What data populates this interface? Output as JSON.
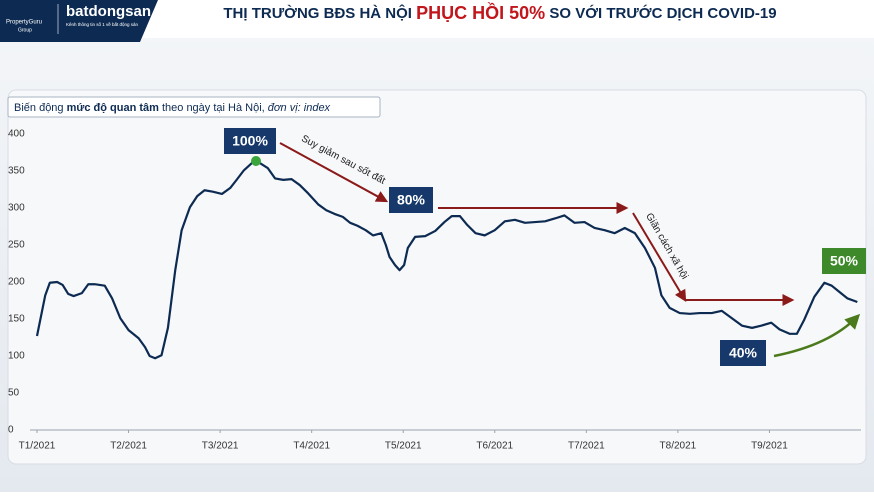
{
  "header": {
    "logos": [
      "PropertyGuru",
      "Group",
      "batdongsan",
      "Kênh thông tin số 1 về bất động sản"
    ],
    "title": [
      "THỊ TRƯỜNG BĐS HÀ NỘI ",
      "PHỤC HỒI 50%",
      " SO VỚI TRƯỚC DỊCH COVID-19"
    ]
  },
  "chart_data": {
    "type": "line",
    "subtitle": [
      "Biến động ",
      "mức độ quan tâm",
      " theo ngày tại Hà Nội, ",
      "đơn vị: index"
    ],
    "annotations": [
      "100%",
      "80%",
      "40%",
      "50%",
      "Suy giảm sau sốt đất",
      "Giãn cách xã hội"
    ],
    "color": "#0d2b52",
    "xlim": [
      0,
      9
    ],
    "xticks": [
      {
        "value": 0,
        "label": "T1/2021"
      },
      {
        "value": 1,
        "label": "T2/2021"
      },
      {
        "value": 2,
        "label": "T3/2021"
      },
      {
        "value": 3,
        "label": "T4/2021"
      },
      {
        "value": 4,
        "label": "T5/2021"
      },
      {
        "value": 5,
        "label": "T6/2021"
      },
      {
        "value": 6,
        "label": "T7/2021"
      },
      {
        "value": 7,
        "label": "T8/2021"
      },
      {
        "value": 8,
        "label": "T9/2021"
      }
    ],
    "ylim": [
      0,
      400
    ],
    "yticks": [
      0,
      50,
      100,
      150,
      200,
      250,
      300,
      350,
      400
    ],
    "grid": false,
    "x": [
      0,
      0.09,
      0.14,
      0.22,
      0.28,
      0.34,
      0.4,
      0.49,
      0.56,
      0.63,
      0.74,
      0.82,
      0.91,
      1.0,
      1.11,
      1.18,
      1.23,
      1.29,
      1.36,
      1.43,
      1.51,
      1.58,
      1.67,
      1.75,
      1.83,
      1.92,
      2.02,
      2.11,
      2.18,
      2.26,
      2.35,
      2.43,
      2.52,
      2.6,
      2.69,
      2.78,
      2.87,
      2.96,
      3.07,
      3.16,
      3.25,
      3.34,
      3.42,
      3.5,
      3.59,
      3.67,
      3.76,
      3.81,
      3.85,
      3.91,
      3.96,
      4.01,
      4.05,
      4.13,
      4.24,
      4.35,
      4.45,
      4.53,
      4.62,
      4.7,
      4.79,
      4.89,
      5.0,
      5.11,
      5.22,
      5.33,
      5.44,
      5.55,
      5.66,
      5.76,
      5.87,
      5.98,
      6.09,
      6.2,
      6.31,
      6.42,
      6.53,
      6.64,
      6.75,
      6.82,
      6.91,
      7.02,
      7.13,
      7.24,
      7.37,
      7.48,
      7.59,
      7.7,
      7.81,
      7.91,
      8.02,
      8.11,
      8.22,
      8.3,
      8.38,
      8.49,
      8.6,
      8.68,
      8.77,
      8.85,
      8.96
    ],
    "values": [
      127,
      182,
      199,
      200,
      196,
      184,
      181,
      185,
      197,
      197,
      195,
      178,
      151,
      135,
      124,
      112,
      100,
      97,
      101,
      138,
      216,
      270,
      301,
      316,
      324,
      322,
      319,
      327,
      338,
      351,
      361,
      361,
      354,
      340,
      338,
      339,
      331,
      320,
      305,
      297,
      292,
      288,
      280,
      276,
      270,
      263,
      266,
      250,
      234,
      223,
      216,
      223,
      246,
      261,
      262,
      269,
      281,
      289,
      289,
      277,
      266,
      263,
      270,
      282,
      284,
      280,
      281,
      282,
      286,
      290,
      280,
      281,
      273,
      270,
      266,
      273,
      266,
      246,
      219,
      182,
      165,
      158,
      157,
      158,
      158,
      161,
      151,
      141,
      138,
      141,
      145,
      136,
      130,
      130,
      149,
      180,
      199,
      195,
      186,
      178,
      173
    ]
  }
}
